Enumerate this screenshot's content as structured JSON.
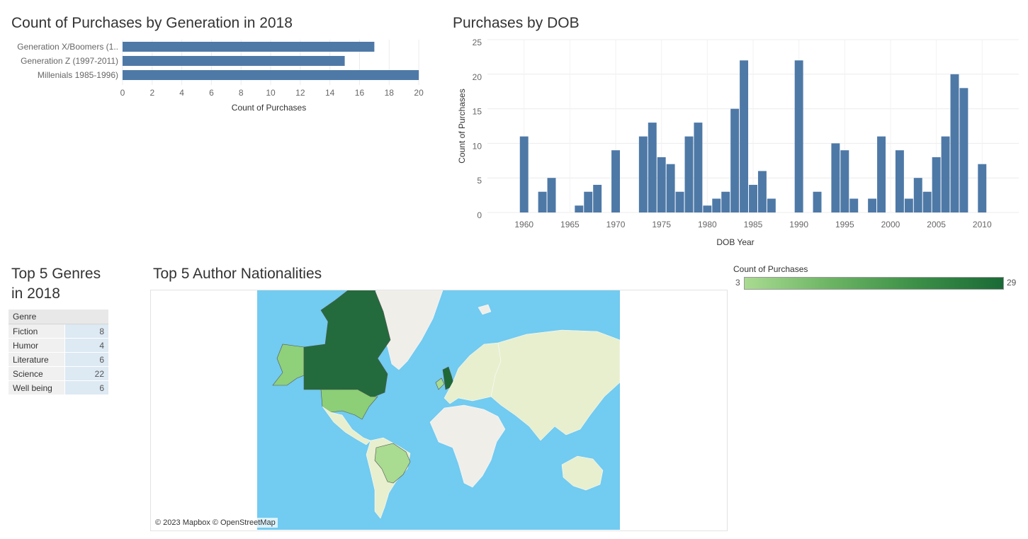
{
  "titles": {
    "generation": "Count of Purchases by Generation in 2018",
    "dob": "Purchases by DOB",
    "genres_line1": "Top 5 Genres",
    "genres_line2": "in 2018",
    "nationalities": "Top 5 Author Nationalities"
  },
  "colors": {
    "bar": "#4e79a7",
    "map_water": "#72cbf0",
    "map_land": "#e8efcf",
    "map_ice": "#f0eee9",
    "legend_low": "#a9db91",
    "legend_high": "#1a6a36"
  },
  "chart_data": [
    {
      "type": "bar",
      "orientation": "horizontal",
      "categories": [
        "Generation X/Boomers (1..",
        "Generation Z (1997-2011)",
        "Millenials 1985-1996)"
      ],
      "values": [
        17,
        15,
        20
      ],
      "xlabel": "Count of Purchases",
      "xlim": [
        0,
        21
      ],
      "xticks": [
        0,
        2,
        4,
        6,
        8,
        10,
        12,
        14,
        16,
        18,
        20
      ],
      "grid": true
    },
    {
      "type": "bar",
      "x": [
        1960,
        1962,
        1963,
        1966,
        1967,
        1968,
        1970,
        1973,
        1974,
        1975,
        1976,
        1977,
        1978,
        1979,
        1980,
        1981,
        1982,
        1983,
        1984,
        1985,
        1986,
        1987,
        1990,
        1992,
        1994,
        1995,
        1996,
        1998,
        1999,
        2001,
        2002,
        2003,
        2004,
        2005,
        2006,
        2007,
        2008,
        2010
      ],
      "values": [
        11,
        3,
        5,
        1,
        3,
        4,
        9,
        11,
        13,
        8,
        7,
        3,
        11,
        13,
        1,
        2,
        3,
        15,
        22,
        4,
        6,
        2,
        22,
        3,
        10,
        9,
        2,
        2,
        11,
        9,
        2,
        5,
        3,
        8,
        11,
        20,
        18,
        7
      ],
      "xlabel": "DOB Year",
      "ylabel": "Count of Purchases",
      "xlim": [
        1956,
        2014
      ],
      "ylim": [
        0,
        25
      ],
      "xticks": [
        1960,
        1965,
        1970,
        1975,
        1980,
        1985,
        1990,
        1995,
        2000,
        2005,
        2010
      ],
      "yticks": [
        0,
        5,
        10,
        15,
        20,
        25
      ],
      "grid": true
    },
    {
      "type": "table",
      "columns": [
        "Genre"
      ],
      "rows": [
        {
          "genre": "Fiction",
          "value": 8
        },
        {
          "genre": "Humor",
          "value": 4
        },
        {
          "genre": "Literature",
          "value": 6
        },
        {
          "genre": "Science",
          "value": 22
        },
        {
          "genre": "Well being",
          "value": 6
        }
      ]
    }
  ],
  "map": {
    "credit": "© 2023 Mapbox © OpenStreetMap",
    "highlighted_countries": [
      "Canada",
      "United States",
      "Brazil",
      "United Kingdom",
      "Ireland"
    ]
  },
  "legend": {
    "title": "Count of Purchases",
    "min": "3",
    "max": "29"
  }
}
